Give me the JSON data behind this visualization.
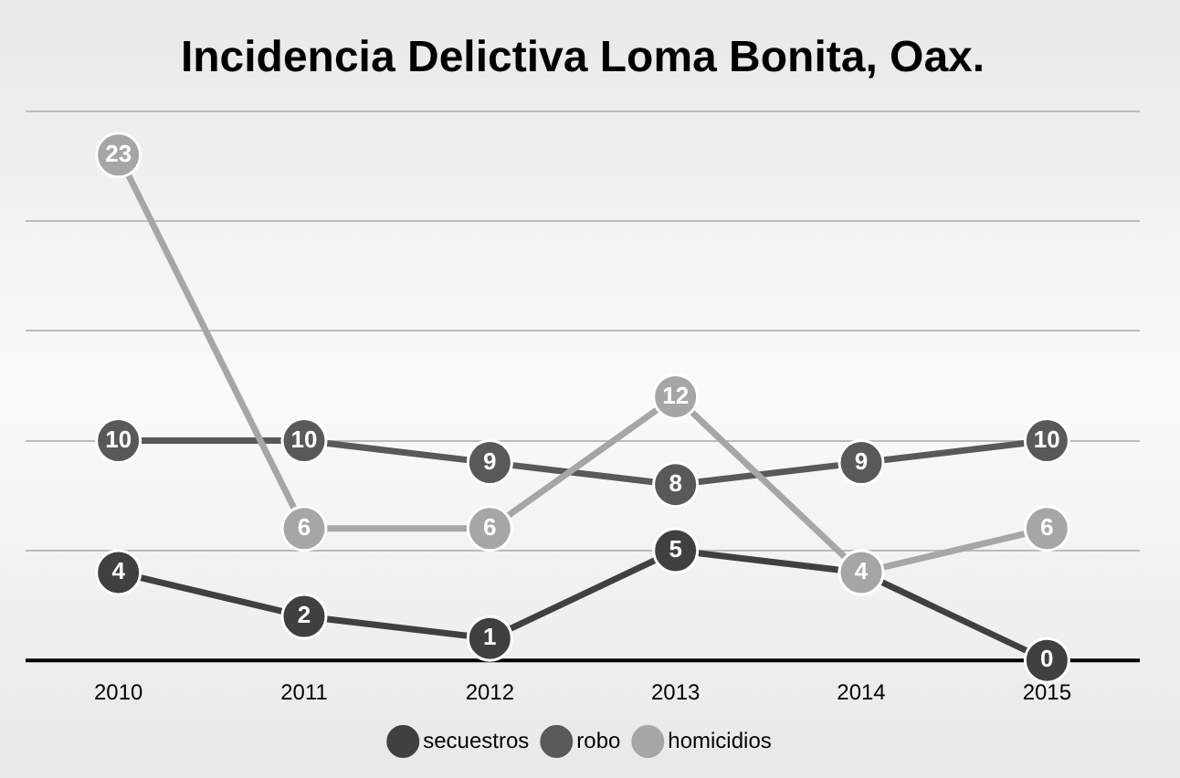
{
  "chart_data": {
    "type": "line",
    "title": "Incidencia Delictiva Loma Bonita, Oax.",
    "categories": [
      "2010",
      "2011",
      "2012",
      "2013",
      "2014",
      "2015"
    ],
    "series": [
      {
        "name": "secuestros",
        "color": "#404040",
        "values": [
          4,
          2,
          1,
          5,
          4,
          0
        ],
        "value_labels": [
          "4",
          "2",
          "1",
          "5",
          null,
          "0"
        ]
      },
      {
        "name": "robo",
        "color": "#595959",
        "values": [
          10,
          10,
          9,
          8,
          9,
          10
        ],
        "value_labels": [
          "10",
          "10",
          "9",
          "8",
          "9",
          "10"
        ]
      },
      {
        "name": "homicidios",
        "color": "#a6a6a6",
        "values": [
          23,
          6,
          6,
          12,
          4,
          6
        ],
        "value_labels": [
          "23",
          "6",
          "6",
          "12",
          "4",
          "6"
        ]
      }
    ],
    "tick_labels": "x",
    "grid": "y",
    "legend": "bottom",
    "marker": "circle",
    "line_style": "solid"
  }
}
